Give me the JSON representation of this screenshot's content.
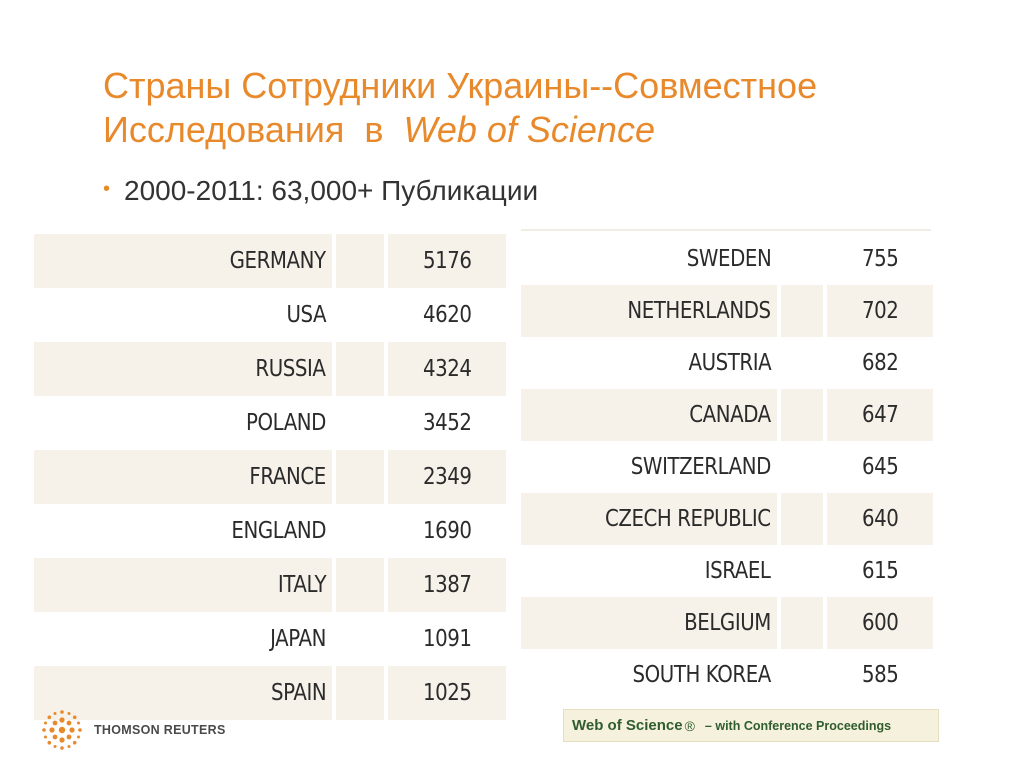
{
  "slide": {
    "title_line1": "Страны Сотрудники Украины--Совместное",
    "title_line2_plain": "Исследования  в  ",
    "title_line2_italic": "Web of Science",
    "bullet": "2000-2011: 63,000+ Публикации"
  },
  "table_left": [
    {
      "country": "GERMANY",
      "count": "5176"
    },
    {
      "country": "USA",
      "count": "4620"
    },
    {
      "country": "RUSSIA",
      "count": "4324"
    },
    {
      "country": "POLAND",
      "count": "3452"
    },
    {
      "country": "FRANCE",
      "count": "2349"
    },
    {
      "country": "ENGLAND",
      "count": "1690"
    },
    {
      "country": "ITALY",
      "count": "1387"
    },
    {
      "country": "JAPAN",
      "count": "1091"
    },
    {
      "country": "SPAIN",
      "count": "1025"
    }
  ],
  "table_right": [
    {
      "country": "SWEDEN",
      "count": "755"
    },
    {
      "country": "NETHERLANDS",
      "count": "702"
    },
    {
      "country": "AUSTRIA",
      "count": "682"
    },
    {
      "country": "CANADA",
      "count": "647"
    },
    {
      "country": "SWITZERLAND",
      "count": "645"
    },
    {
      "country": "CZECH REPUBLIC",
      "count": "640"
    },
    {
      "country": "ISRAEL",
      "count": "615"
    },
    {
      "country": "BELGIUM",
      "count": "600"
    },
    {
      "country": "SOUTH KOREA",
      "count": "585"
    }
  ],
  "footer": {
    "logo_text": "THOMSON REUTERS",
    "logo_icon": "thomson-reuters-dot-sphere",
    "wos_label": "Web of Science",
    "wos_reg": "®",
    "wos_sub": "– with Conference Proceedings"
  },
  "colors": {
    "accent_orange": "#e8892b",
    "row_shade": "#f6f1e9",
    "wos_green": "#2f5d2f"
  }
}
